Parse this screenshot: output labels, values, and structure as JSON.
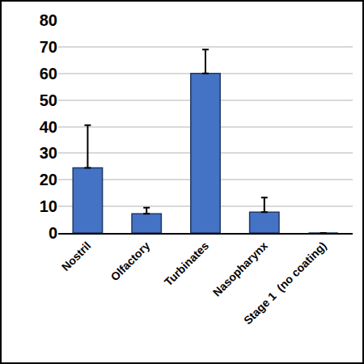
{
  "chart_data": {
    "type": "bar",
    "categories": [
      "Nostril",
      "Olfactory",
      "Turbinates",
      "Nasopharynx",
      "Stage 1  (no coating)"
    ],
    "values": [
      24.5,
      7.2,
      60,
      7.8,
      0
    ],
    "errors": [
      16,
      2.3,
      9,
      5.5,
      null
    ],
    "color": "#4472c4",
    "ylim": [
      0,
      80
    ],
    "yticks": [
      0,
      10,
      20,
      30,
      40,
      50,
      60,
      70,
      80
    ],
    "grid": true
  }
}
